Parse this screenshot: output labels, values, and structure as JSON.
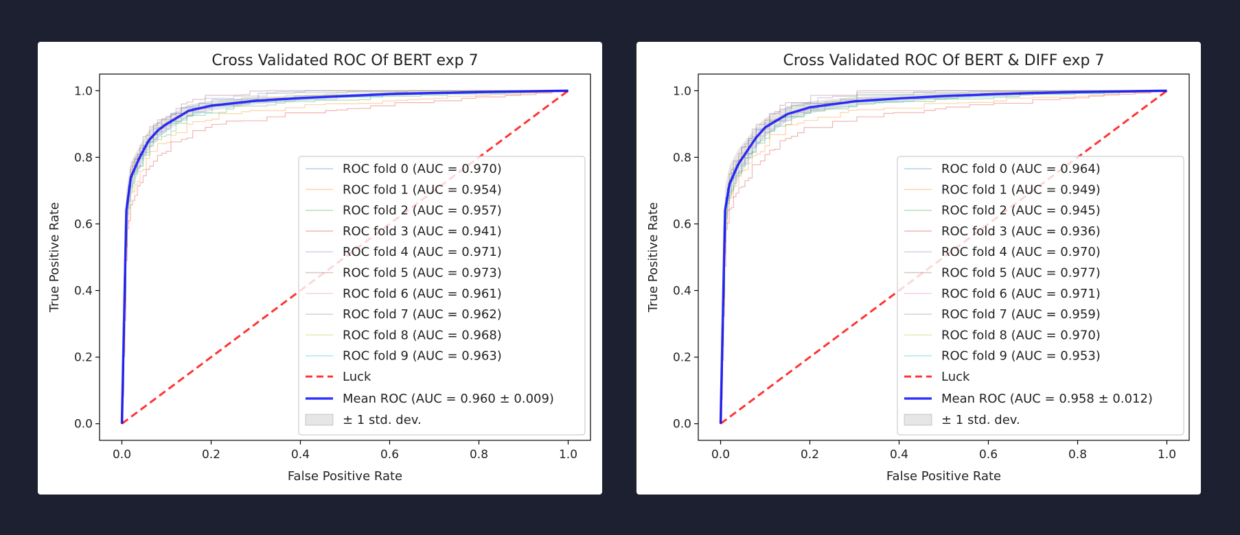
{
  "chart_data": [
    {
      "type": "line",
      "title": "Cross Validated ROC Of BERT exp 7",
      "xlabel": "False Positive Rate",
      "ylabel": "True Positive Rate",
      "xlim": [
        -0.05,
        1.05
      ],
      "ylim": [
        -0.05,
        1.05
      ],
      "xticks": [
        "0.0",
        "0.2",
        "0.4",
        "0.6",
        "0.8",
        "1.0"
      ],
      "yticks": [
        "0.0",
        "0.2",
        "0.4",
        "0.6",
        "0.8",
        "1.0"
      ],
      "legend_position": "lower right",
      "folds": [
        {
          "name": "ROC fold 0 (AUC = 0.970)",
          "color": "#1f77b4"
        },
        {
          "name": "ROC fold 1 (AUC = 0.954)",
          "color": "#ff7f0e"
        },
        {
          "name": "ROC fold 2 (AUC = 0.957)",
          "color": "#2ca02c"
        },
        {
          "name": "ROC fold 3 (AUC = 0.941)",
          "color": "#d62728"
        },
        {
          "name": "ROC fold 4 (AUC = 0.971)",
          "color": "#9467bd"
        },
        {
          "name": "ROC fold 5 (AUC = 0.973)",
          "color": "#8c564b"
        },
        {
          "name": "ROC fold 6 (AUC = 0.961)",
          "color": "#e377c2"
        },
        {
          "name": "ROC fold 7 (AUC = 0.962)",
          "color": "#7f7f7f"
        },
        {
          "name": "ROC fold 8 (AUC = 0.968)",
          "color": "#bcbd22"
        },
        {
          "name": "ROC fold 9 (AUC = 0.963)",
          "color": "#17becf"
        }
      ],
      "luck": {
        "name": "Luck",
        "color": "#ff0000",
        "x": [
          0,
          1
        ],
        "y": [
          0,
          1
        ]
      },
      "mean": {
        "name": "Mean ROC (AUC = 0.960 ± 0.009)",
        "color": "#0000ff",
        "x": [
          0,
          0.01,
          0.02,
          0.04,
          0.06,
          0.08,
          0.1,
          0.15,
          0.2,
          0.3,
          0.4,
          0.5,
          0.6,
          0.7,
          0.8,
          0.9,
          1.0
        ],
        "y": [
          0,
          0.64,
          0.74,
          0.8,
          0.85,
          0.88,
          0.9,
          0.94,
          0.955,
          0.97,
          0.978,
          0.984,
          0.99,
          0.993,
          0.996,
          0.998,
          1.0
        ]
      },
      "std_band": {
        "name": "± 1 std. dev.",
        "color": "#808080",
        "halfwidth": [
          0,
          0.06,
          0.045,
          0.035,
          0.03,
          0.026,
          0.022,
          0.018,
          0.015,
          0.011,
          0.008,
          0.006,
          0.005,
          0.004,
          0.003,
          0.002,
          0
        ]
      }
    },
    {
      "type": "line",
      "title": "Cross Validated ROC Of BERT & DIFF exp 7",
      "xlabel": "False Positive Rate",
      "ylabel": "True Positive Rate",
      "xlim": [
        -0.05,
        1.05
      ],
      "ylim": [
        -0.05,
        1.05
      ],
      "xticks": [
        "0.0",
        "0.2",
        "0.4",
        "0.6",
        "0.8",
        "1.0"
      ],
      "yticks": [
        "0.0",
        "0.2",
        "0.4",
        "0.6",
        "0.8",
        "1.0"
      ],
      "legend_position": "lower right",
      "folds": [
        {
          "name": "ROC fold 0 (AUC = 0.964)",
          "color": "#1f77b4"
        },
        {
          "name": "ROC fold 1 (AUC = 0.949)",
          "color": "#ff7f0e"
        },
        {
          "name": "ROC fold 2 (AUC = 0.945)",
          "color": "#2ca02c"
        },
        {
          "name": "ROC fold 3 (AUC = 0.936)",
          "color": "#d62728"
        },
        {
          "name": "ROC fold 4 (AUC = 0.970)",
          "color": "#9467bd"
        },
        {
          "name": "ROC fold 5 (AUC = 0.977)",
          "color": "#8c564b"
        },
        {
          "name": "ROC fold 6 (AUC = 0.971)",
          "color": "#e377c2"
        },
        {
          "name": "ROC fold 7 (AUC = 0.959)",
          "color": "#7f7f7f"
        },
        {
          "name": "ROC fold 8 (AUC = 0.970)",
          "color": "#bcbd22"
        },
        {
          "name": "ROC fold 9 (AUC = 0.953)",
          "color": "#17becf"
        }
      ],
      "luck": {
        "name": "Luck",
        "color": "#ff0000",
        "x": [
          0,
          1
        ],
        "y": [
          0,
          1
        ]
      },
      "mean": {
        "name": "Mean ROC (AUC = 0.958 ± 0.012)",
        "color": "#0000ff",
        "x": [
          0,
          0.01,
          0.02,
          0.04,
          0.06,
          0.08,
          0.1,
          0.15,
          0.2,
          0.3,
          0.4,
          0.5,
          0.6,
          0.7,
          0.8,
          0.9,
          1.0
        ],
        "y": [
          0,
          0.64,
          0.72,
          0.78,
          0.82,
          0.86,
          0.89,
          0.93,
          0.95,
          0.968,
          0.977,
          0.984,
          0.989,
          0.993,
          0.996,
          0.998,
          1.0
        ]
      },
      "std_band": {
        "name": "± 1 std. dev.",
        "color": "#808080",
        "halfwidth": [
          0,
          0.07,
          0.055,
          0.045,
          0.038,
          0.032,
          0.028,
          0.022,
          0.018,
          0.013,
          0.01,
          0.008,
          0.006,
          0.005,
          0.004,
          0.002,
          0
        ]
      }
    }
  ]
}
